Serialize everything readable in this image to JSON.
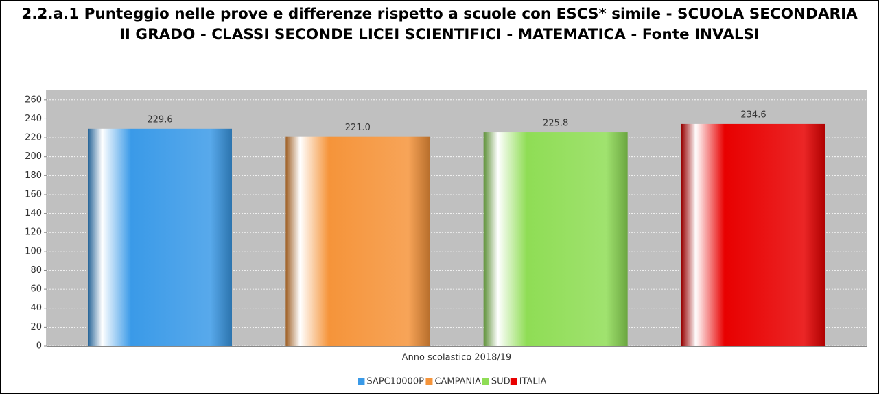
{
  "chart_data": {
    "type": "bar",
    "title": "2.2.a.1 Punteggio nelle prove e differenze rispetto a scuole con ESCS* simile - SCUOLA SECONDARIA II GRADO - CLASSI SECONDE LICEI SCIENTIFICI - MATEMATICA - Fonte INVALSI",
    "categories": [
      "Anno scolastico 2018/19"
    ],
    "series": [
      {
        "name": "SAPC10000P",
        "color": "#3a9ae8",
        "values": [
          229.6
        ],
        "value_labels": [
          "229.6"
        ]
      },
      {
        "name": "CAMPANIA",
        "color": "#f5943a",
        "values": [
          221.0
        ],
        "value_labels": [
          "221.0"
        ]
      },
      {
        "name": "SUD",
        "color": "#8fdd55",
        "values": [
          225.8
        ],
        "value_labels": [
          "225.8"
        ]
      },
      {
        "name": "ITALIA",
        "color": "#e80000",
        "values": [
          234.6
        ],
        "value_labels": [
          "234.6"
        ]
      }
    ],
    "ylim": [
      0,
      270
    ],
    "yticks": [
      0,
      20,
      40,
      60,
      80,
      100,
      120,
      140,
      160,
      180,
      200,
      220,
      240,
      260
    ],
    "grid": true,
    "legend": "bottom"
  }
}
